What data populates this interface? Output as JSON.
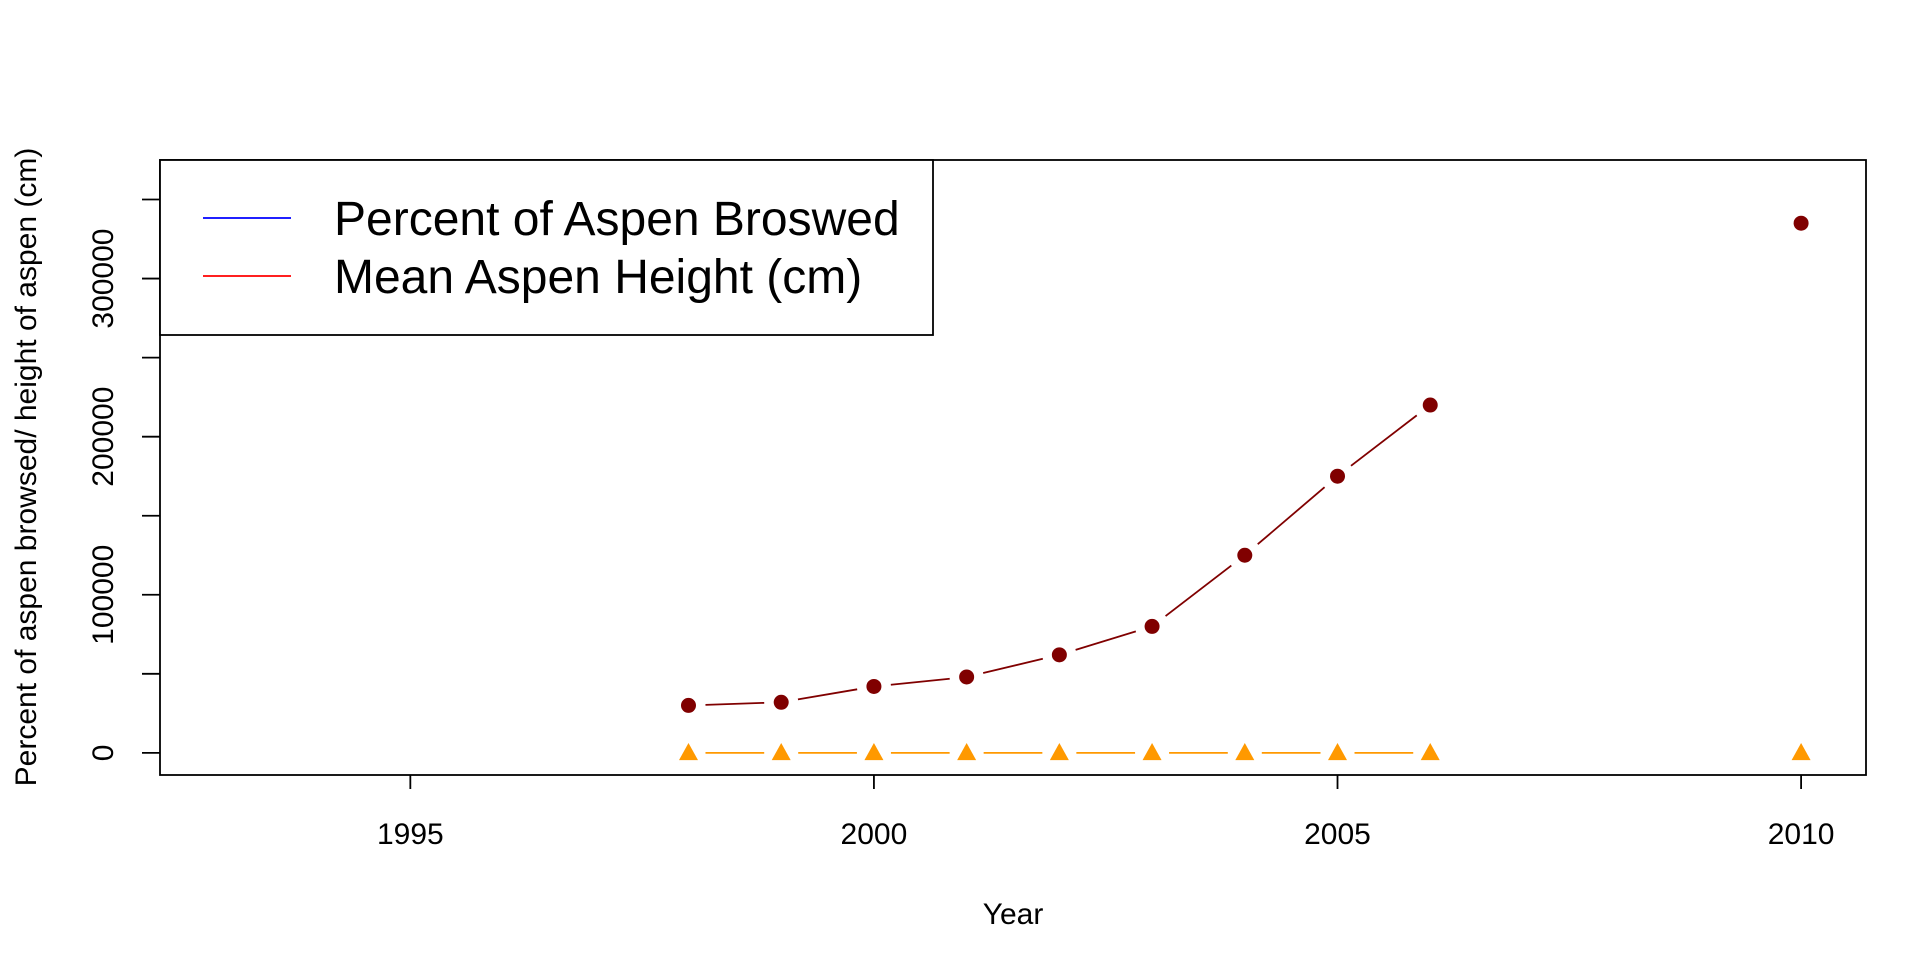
{
  "chart_data": {
    "type": "line",
    "title": "",
    "xlabel": "Year",
    "ylabel": "Percent of aspen browsed/ height of aspen (cm)",
    "xlim": [
      1992.3,
      2010.7
    ],
    "ylim": [
      -14000,
      375000
    ],
    "x_ticks": [
      1995,
      2000,
      2005,
      2010
    ],
    "x_tick_labels": [
      "1995",
      "2000",
      "2005",
      "2010"
    ],
    "y_ticks": [
      0,
      50000,
      100000,
      150000,
      200000,
      250000,
      300000,
      350000
    ],
    "y_tick_labels": [
      "0",
      "100000",
      "200000",
      "300000"
    ],
    "y_labeled_ticks": [
      0,
      100000,
      200000,
      300000
    ],
    "grid": false,
    "legend_position": "top-left",
    "legend": [
      {
        "label": "Percent of Aspen Broswed",
        "color": "#0000ff"
      },
      {
        "label": "Mean Aspen Height (cm)",
        "color": "#ff0000"
      }
    ],
    "series": [
      {
        "name": "Mean Aspen Height (cm)",
        "color": "#800000",
        "marker": "circle",
        "x": [
          1998,
          1999,
          2000,
          2001,
          2002,
          2003,
          2004,
          2005,
          2006,
          2010
        ],
        "values": [
          30000,
          32000,
          42000,
          48000,
          62000,
          80000,
          125000,
          175000,
          220000,
          335000
        ],
        "connected_through": 2006
      },
      {
        "name": "Percent of Aspen Browsed",
        "color": "#ff9900",
        "marker": "triangle",
        "x": [
          1998,
          1999,
          2000,
          2001,
          2002,
          2003,
          2004,
          2005,
          2006,
          2010
        ],
        "values": [
          0,
          0,
          0,
          0,
          0,
          0,
          0,
          0,
          0,
          0
        ],
        "connected_through": 2006
      }
    ]
  }
}
